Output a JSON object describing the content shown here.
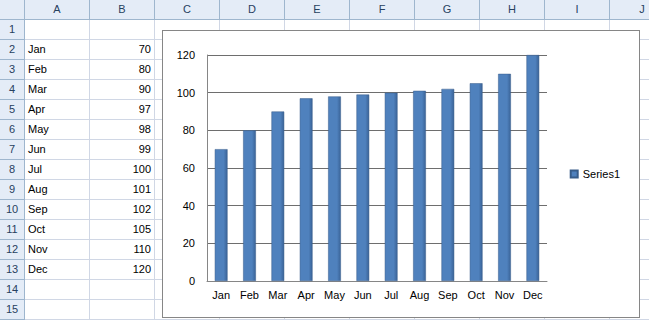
{
  "chart_data": {
    "type": "bar",
    "categories": [
      "Jan",
      "Feb",
      "Mar",
      "Apr",
      "May",
      "Jun",
      "Jul",
      "Aug",
      "Sep",
      "Oct",
      "Nov",
      "Dec"
    ],
    "series": [
      {
        "name": "Series1",
        "color": "#4f81bd",
        "values": [
          70,
          80,
          90,
          97,
          98,
          99,
          100,
          101,
          102,
          105,
          110,
          120
        ]
      }
    ],
    "ylim": [
      0,
      120
    ],
    "yticks": [
      0,
      20,
      40,
      60,
      80,
      100,
      120
    ],
    "grid": true,
    "legend": "right"
  },
  "sheet": {
    "columns": [
      "A",
      "B",
      "C",
      "D",
      "E",
      "F",
      "G",
      "H",
      "I",
      "J"
    ],
    "rows": [
      1,
      2,
      3,
      4,
      5,
      6,
      7,
      8,
      9,
      10,
      11,
      12,
      13,
      14,
      15
    ]
  }
}
